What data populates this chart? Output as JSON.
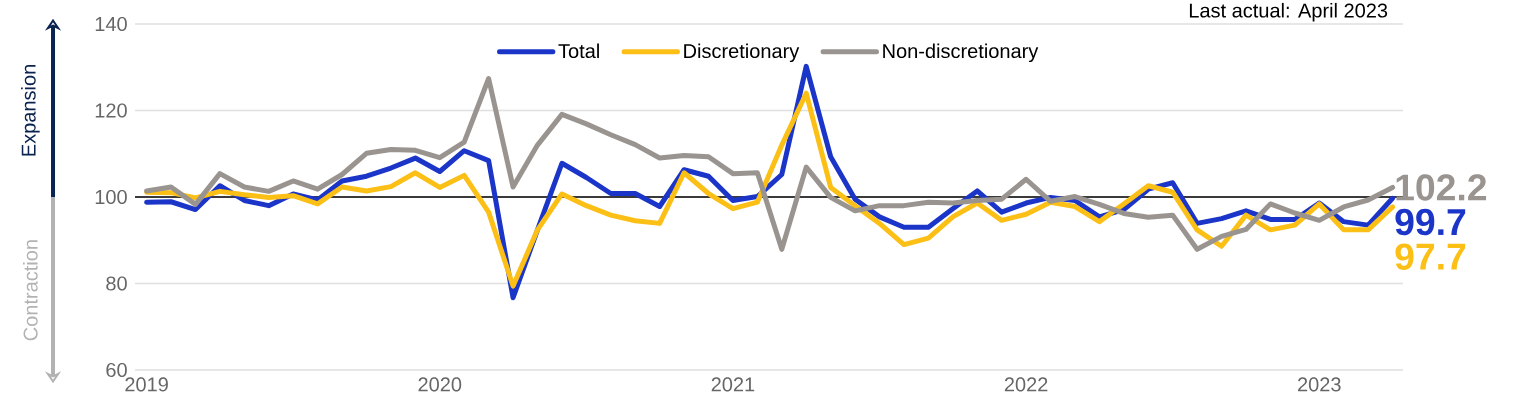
{
  "chart_data": {
    "type": "line",
    "x": [
      "2019-01",
      "2019-02",
      "2019-03",
      "2019-04",
      "2019-05",
      "2019-06",
      "2019-07",
      "2019-08",
      "2019-09",
      "2019-10",
      "2019-11",
      "2019-12",
      "2020-01",
      "2020-02",
      "2020-03",
      "2020-04",
      "2020-05",
      "2020-06",
      "2020-07",
      "2020-08",
      "2020-09",
      "2020-10",
      "2020-11",
      "2020-12",
      "2021-01",
      "2021-02",
      "2021-03",
      "2021-04",
      "2021-05",
      "2021-06",
      "2021-07",
      "2021-08",
      "2021-09",
      "2021-10",
      "2021-11",
      "2021-12",
      "2022-01",
      "2022-02",
      "2022-03",
      "2022-04",
      "2022-05",
      "2022-06",
      "2022-07",
      "2022-08",
      "2022-09",
      "2022-10",
      "2022-11",
      "2022-12",
      "2023-01",
      "2023-02",
      "2023-03",
      "2023-04"
    ],
    "series": [
      {
        "name": "Total",
        "color": "#1a35c8",
        "values": [
          98.8,
          98.9,
          97.1,
          102.6,
          99.2,
          98.0,
          100.7,
          99.3,
          103.7,
          104.8,
          106.7,
          109.0,
          105.9,
          110.7,
          108.4,
          76.7,
          92.4,
          107.8,
          104.5,
          100.8,
          100.8,
          97.8,
          106.3,
          104.8,
          99.2,
          100.1,
          105.2,
          130.2,
          109.3,
          99.5,
          95.4,
          93.0,
          93.0,
          97.3,
          101.4,
          96.5,
          98.6,
          99.9,
          99.2,
          95.4,
          97.1,
          101.8,
          103.3,
          93.9,
          95.0,
          96.8,
          94.8,
          94.8,
          98.6,
          94.3,
          93.5,
          99.7
        ],
        "value_labels": [
          null,
          null,
          null,
          null,
          null,
          null,
          null,
          null,
          null,
          null,
          null,
          null,
          null,
          null,
          null,
          null,
          null,
          null,
          null,
          null,
          null,
          null,
          null,
          null,
          null,
          null,
          null,
          null,
          null,
          null,
          null,
          null,
          null,
          null,
          null,
          null,
          null,
          null,
          null,
          null,
          null,
          null,
          null,
          null,
          null,
          null,
          null,
          null,
          null,
          null,
          null,
          "99.7"
        ]
      },
      {
        "name": "Discretionary",
        "color": "#fbbf16",
        "values": [
          101.1,
          101.0,
          99.8,
          101.3,
          100.5,
          99.9,
          100.3,
          98.4,
          102.3,
          101.4,
          102.4,
          105.6,
          102.2,
          105.0,
          96.5,
          79.4,
          92.4,
          100.7,
          98.0,
          95.8,
          94.5,
          93.9,
          105.6,
          100.8,
          97.3,
          98.8,
          112.0,
          124.0,
          102.2,
          98.0,
          93.9,
          89.0,
          90.5,
          95.4,
          98.6,
          94.6,
          96.0,
          98.8,
          97.8,
          94.3,
          98.4,
          102.6,
          101.1,
          92.4,
          88.6,
          95.8,
          92.4,
          93.5,
          98.4,
          92.4,
          92.4,
          97.7
        ],
        "value_labels": [
          null,
          null,
          null,
          null,
          null,
          null,
          null,
          null,
          null,
          null,
          null,
          null,
          null,
          null,
          null,
          null,
          null,
          null,
          null,
          null,
          null,
          null,
          null,
          null,
          null,
          null,
          null,
          null,
          null,
          null,
          null,
          null,
          null,
          null,
          null,
          null,
          null,
          null,
          null,
          null,
          null,
          null,
          null,
          null,
          null,
          null,
          null,
          null,
          null,
          null,
          null,
          "97.7"
        ]
      },
      {
        "name": "Non-discretionary",
        "color": "#99948f",
        "values": [
          101.4,
          102.3,
          98.3,
          105.4,
          102.3,
          101.3,
          103.7,
          101.8,
          105.2,
          110.1,
          111.0,
          110.8,
          109.1,
          112.7,
          127.4,
          102.3,
          112.0,
          119.1,
          116.9,
          114.4,
          112.1,
          109.0,
          109.6,
          109.3,
          105.4,
          105.6,
          87.9,
          106.9,
          99.9,
          96.8,
          98.0,
          98.0,
          98.8,
          98.6,
          99.2,
          99.5,
          104.1,
          99.0,
          100.1,
          98.3,
          96.2,
          95.3,
          95.8,
          87.9,
          90.9,
          92.5,
          98.4,
          96.3,
          94.6,
          97.7,
          99.3,
          102.2
        ],
        "value_labels": [
          null,
          null,
          null,
          null,
          null,
          null,
          null,
          null,
          null,
          null,
          null,
          null,
          null,
          null,
          null,
          null,
          null,
          null,
          null,
          null,
          null,
          null,
          null,
          null,
          null,
          null,
          null,
          null,
          null,
          null,
          null,
          null,
          null,
          null,
          null,
          null,
          null,
          null,
          null,
          null,
          null,
          null,
          null,
          null,
          null,
          null,
          null,
          null,
          null,
          null,
          null,
          "102.2"
        ]
      }
    ],
    "xlim": [
      "2018-12-17",
      "2023-04-14"
    ],
    "xticks": [
      "2019",
      "2020",
      "2021",
      "2022",
      "2023"
    ],
    "ylim": [
      60,
      140
    ],
    "yticks": [
      60,
      80,
      100,
      120,
      140
    ],
    "grid": "y",
    "legend": "top",
    "line_style": "solid",
    "ref_lines": [
      {
        "axis": "y",
        "value": 100,
        "color": "#000000"
      }
    ],
    "annotations": [
      "Expansion",
      "Contraction",
      "Last actual: April 2023"
    ]
  }
}
